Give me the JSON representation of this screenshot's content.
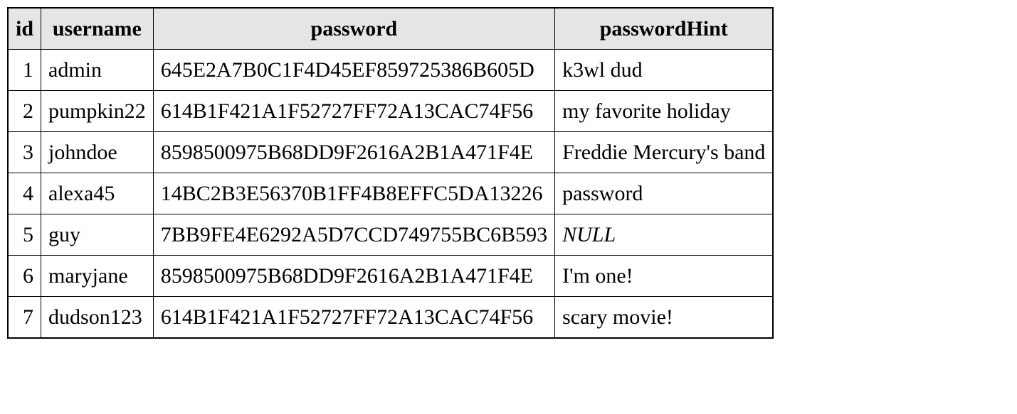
{
  "table": {
    "type": "table",
    "header_background": "#e5e5e5",
    "border_color": "#000000",
    "font_family": "Times New Roman",
    "header_fontsize": 30,
    "cell_fontsize": 30,
    "columns": [
      {
        "key": "id",
        "label": "id",
        "align": "right"
      },
      {
        "key": "username",
        "label": "username",
        "align": "left"
      },
      {
        "key": "password",
        "label": "password",
        "align": "left"
      },
      {
        "key": "passwordHint",
        "label": "passwordHint",
        "align": "left"
      }
    ],
    "rows": [
      {
        "id": "1",
        "username": "admin",
        "password": "645E2A7B0C1F4D45EF859725386B605D",
        "passwordHint": "k3wl dud",
        "hint_null": false
      },
      {
        "id": "2",
        "username": "pumpkin22",
        "password": "614B1F421A1F52727FF72A13CAC74F56",
        "passwordHint": "my favorite holiday",
        "hint_null": false
      },
      {
        "id": "3",
        "username": "johndoe",
        "password": "8598500975B68DD9F2616A2B1A471F4E",
        "passwordHint": "Freddie Mercury's band",
        "hint_null": false
      },
      {
        "id": "4",
        "username": "alexa45",
        "password": "14BC2B3E56370B1FF4B8EFFC5DA13226",
        "passwordHint": "password",
        "hint_null": false
      },
      {
        "id": "5",
        "username": "guy",
        "password": "7BB9FE4E6292A5D7CCD749755BC6B593",
        "passwordHint": "NULL",
        "hint_null": true
      },
      {
        "id": "6",
        "username": "maryjane",
        "password": "8598500975B68DD9F2616A2B1A471F4E",
        "passwordHint": "I'm one!",
        "hint_null": false
      },
      {
        "id": "7",
        "username": "dudson123",
        "password": "614B1F421A1F52727FF72A13CAC74F56",
        "passwordHint": "scary movie!",
        "hint_null": false
      }
    ]
  }
}
